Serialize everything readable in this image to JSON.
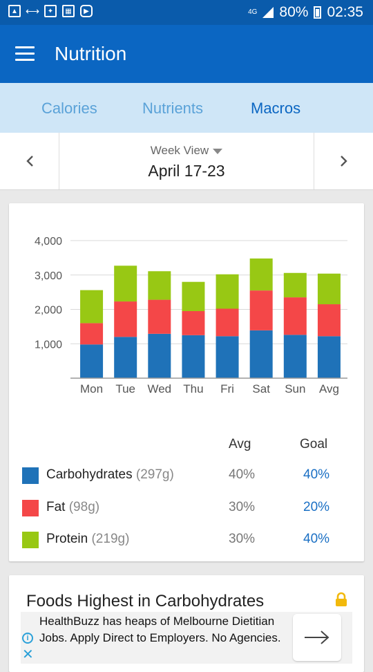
{
  "status_bar": {
    "network": "4G",
    "battery": "80%",
    "time": "02:35"
  },
  "app_bar": {
    "title": "Nutrition"
  },
  "tabs": [
    {
      "label": "Calories",
      "active": false
    },
    {
      "label": "Nutrients",
      "active": false
    },
    {
      "label": "Macros",
      "active": true
    }
  ],
  "week": {
    "view_label": "Week View",
    "range": "April 17-23"
  },
  "chart_data": {
    "type": "bar",
    "stacked": true,
    "categories": [
      "Mon",
      "Tue",
      "Wed",
      "Thu",
      "Fri",
      "Sat",
      "Sun",
      "Avg"
    ],
    "series": [
      {
        "name": "Carbohydrates",
        "color": "#1f72b8",
        "values": [
          980,
          1200,
          1290,
          1250,
          1220,
          1390,
          1260,
          1220
        ]
      },
      {
        "name": "Fat",
        "color": "#f44748",
        "values": [
          620,
          1030,
          990,
          700,
          800,
          1160,
          1090,
          930
        ]
      },
      {
        "name": "Protein",
        "color": "#98c814",
        "values": [
          960,
          1040,
          830,
          850,
          1000,
          930,
          710,
          890
        ]
      }
    ],
    "y_ticks": [
      "1,000",
      "2,000",
      "3,000",
      "4,000"
    ],
    "ylim": [
      0,
      4000
    ],
    "grid": true
  },
  "legend": {
    "avg_header": "Avg",
    "goal_header": "Goal",
    "rows": [
      {
        "name": "Carbohydrates",
        "grams": "(297g)",
        "avg": "40%",
        "goal": "40%",
        "color": "#1f72b8"
      },
      {
        "name": "Fat",
        "grams": "(98g)",
        "avg": "30%",
        "goal": "20%",
        "color": "#f44748"
      },
      {
        "name": "Protein",
        "grams": "(219g)",
        "avg": "30%",
        "goal": "40%",
        "color": "#98c814"
      }
    ]
  },
  "foods": {
    "title": "Foods Highest in Carbohydrates"
  },
  "ad": {
    "text": "HealthBuzz has heaps of Melbourne Dietitian Jobs. Apply Direct to Employers. No Agencies."
  }
}
